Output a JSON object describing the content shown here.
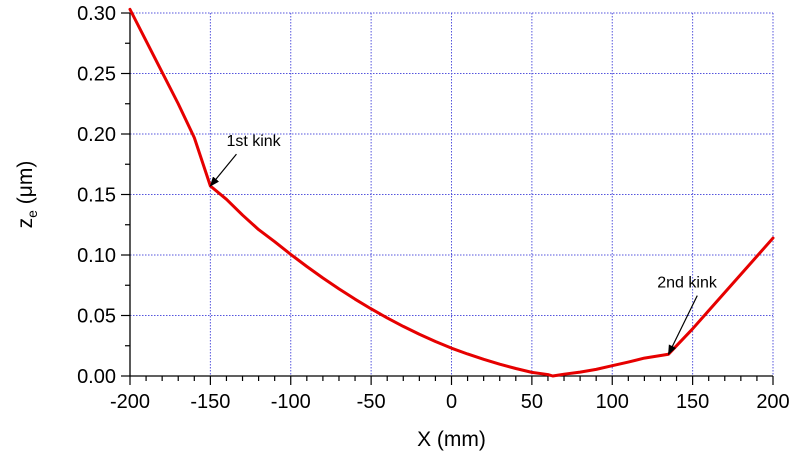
{
  "chart_data": {
    "type": "line",
    "xlabel": "X (mm)",
    "ylabel": "z",
    "ylabel_sub": "e",
    "ylabel_unit": " (μm)",
    "xlim": [
      -200,
      200
    ],
    "ylim": [
      0,
      0.3
    ],
    "x_ticks": [
      -200,
      -150,
      -100,
      -50,
      0,
      50,
      100,
      150,
      200
    ],
    "x_tick_labels": [
      "-200",
      "-150",
      "-100",
      "-50",
      "0",
      "50",
      "100",
      "150",
      "200"
    ],
    "y_ticks": [
      0,
      0.05,
      0.1,
      0.15,
      0.2,
      0.25,
      0.3
    ],
    "y_tick_labels": [
      "0.00",
      "0.05",
      "0.10",
      "0.15",
      "0.20",
      "0.25",
      "0.30"
    ],
    "x_minor_step": 10,
    "grid": true,
    "grid_color": "#5555dd",
    "line_color": "#e60000",
    "series": [
      {
        "x": [
          -200,
          -190,
          -180,
          -170,
          -160,
          -150,
          -140,
          -130,
          -120,
          -110,
          -100,
          -90,
          -80,
          -70,
          -60,
          -50,
          -40,
          -30,
          -20,
          -10,
          0,
          10,
          20,
          30,
          40,
          50,
          60,
          63,
          70,
          80,
          90,
          100,
          110,
          120,
          135,
          150,
          160,
          170,
          180,
          190,
          200
        ],
        "values": [
          0.303,
          0.277,
          0.251,
          0.225,
          0.197,
          0.157,
          0.146,
          0.133,
          0.121,
          0.111,
          0.1005,
          0.0905,
          0.081,
          0.072,
          0.0635,
          0.0555,
          0.048,
          0.041,
          0.0345,
          0.0285,
          0.023,
          0.0182,
          0.0138,
          0.0098,
          0.0062,
          0.003,
          0.0012,
          0.0,
          0.0015,
          0.0032,
          0.0055,
          0.0085,
          0.0115,
          0.0148,
          0.018,
          0.039,
          0.054,
          0.069,
          0.084,
          0.099,
          0.114
        ]
      }
    ],
    "annotations": [
      {
        "text": "1st kink",
        "x": -150,
        "y": 0.157,
        "text_x": -140,
        "text_y": 0.19
      },
      {
        "text": "2nd kink",
        "x": 135,
        "y": 0.018,
        "text_x": 128,
        "text_y": 0.073
      }
    ]
  }
}
